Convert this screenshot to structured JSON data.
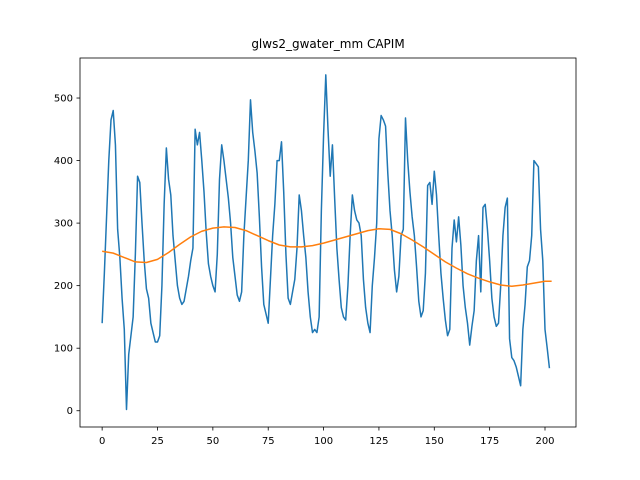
{
  "chart_data": {
    "type": "line",
    "title": "glws2_gwater_mm CAPIM",
    "xlim": [
      -10,
      214
    ],
    "xticks": [
      0,
      25,
      50,
      75,
      100,
      125,
      150,
      175,
      200
    ],
    "ylim": [
      -26,
      564
    ],
    "yticks": [
      0,
      100,
      200,
      300,
      400,
      500
    ],
    "grid": false,
    "series": [
      {
        "color": "#1f77b4",
        "x": [
          0,
          1,
          2,
          3,
          4,
          5,
          6,
          7,
          8,
          9,
          10,
          11,
          12,
          13,
          14,
          15,
          16,
          17,
          18,
          19,
          20,
          21,
          22,
          23,
          24,
          25,
          26,
          27,
          28,
          29,
          30,
          31,
          32,
          33,
          34,
          35,
          36,
          37,
          38,
          39,
          40,
          41,
          42,
          43,
          44,
          45,
          46,
          47,
          48,
          49,
          50,
          51,
          52,
          53,
          54,
          55,
          56,
          57,
          58,
          59,
          60,
          61,
          62,
          63,
          64,
          65,
          66,
          67,
          68,
          69,
          70,
          71,
          72,
          73,
          74,
          75,
          76,
          77,
          78,
          79,
          80,
          81,
          82,
          83,
          84,
          85,
          86,
          87,
          88,
          89,
          90,
          91,
          92,
          93,
          94,
          95,
          96,
          97,
          98,
          99,
          100,
          101,
          102,
          103,
          104,
          105,
          106,
          107,
          108,
          109,
          110,
          111,
          112,
          113,
          114,
          115,
          116,
          117,
          118,
          119,
          120,
          121,
          122,
          123,
          124,
          125,
          126,
          127,
          128,
          129,
          130,
          131,
          132,
          133,
          134,
          135,
          136,
          137,
          138,
          139,
          140,
          141,
          142,
          143,
          144,
          145,
          146,
          147,
          148,
          149,
          150,
          151,
          152,
          153,
          154,
          155,
          156,
          157,
          158,
          159,
          160,
          161,
          162,
          163,
          164,
          165,
          166,
          167,
          168,
          169,
          170,
          171,
          172,
          173,
          174,
          175,
          176,
          177,
          178,
          179,
          180,
          181,
          182,
          183,
          184,
          185,
          186,
          187,
          188,
          189,
          190,
          191,
          192,
          193,
          194,
          195,
          196,
          197,
          198,
          199,
          200,
          201,
          202
        ],
        "values": [
          140,
          220,
          310,
          400,
          465,
          480,
          425,
          290,
          245,
          180,
          130,
          2,
          90,
          120,
          150,
          250,
          375,
          365,
          300,
          240,
          195,
          180,
          140,
          125,
          110,
          110,
          120,
          200,
          330,
          420,
          370,
          345,
          280,
          240,
          200,
          180,
          170,
          175,
          195,
          215,
          240,
          260,
          450,
          425,
          445,
          400,
          350,
          285,
          235,
          215,
          200,
          190,
          250,
          370,
          425,
          400,
          370,
          340,
          300,
          245,
          215,
          185,
          175,
          190,
          280,
          340,
          400,
          497,
          445,
          415,
          380,
          310,
          230,
          170,
          155,
          140,
          210,
          280,
          330,
          400,
          400,
          430,
          350,
          250,
          180,
          170,
          190,
          210,
          260,
          345,
          320,
          280,
          245,
          190,
          150,
          125,
          130,
          125,
          150,
          320,
          440,
          537,
          450,
          375,
          425,
          340,
          260,
          210,
          165,
          150,
          145,
          200,
          280,
          345,
          320,
          305,
          300,
          280,
          210,
          165,
          140,
          125,
          200,
          245,
          300,
          435,
          472,
          465,
          455,
          380,
          320,
          280,
          225,
          190,
          215,
          280,
          290,
          468,
          400,
          350,
          310,
          280,
          230,
          175,
          150,
          160,
          220,
          360,
          365,
          330,
          383,
          345,
          280,
          220,
          180,
          145,
          120,
          130,
          260,
          305,
          270,
          310,
          265,
          200,
          165,
          140,
          105,
          135,
          160,
          240,
          280,
          190,
          325,
          330,
          290,
          240,
          180,
          150,
          135,
          140,
          200,
          280,
          325,
          340,
          115,
          85,
          80,
          70,
          55,
          40,
          130,
          170,
          230,
          240,
          280,
          400,
          395,
          390,
          290,
          240,
          130,
          100,
          68
        ]
      },
      {
        "color": "#ff7f0e",
        "x": [
          0,
          5,
          10,
          15,
          20,
          25,
          30,
          35,
          40,
          45,
          50,
          55,
          60,
          65,
          70,
          75,
          80,
          85,
          90,
          95,
          100,
          105,
          110,
          115,
          120,
          125,
          130,
          135,
          140,
          145,
          150,
          155,
          160,
          165,
          170,
          175,
          180,
          185,
          190,
          195,
          200,
          203
        ],
        "values": [
          255,
          252,
          245,
          238,
          237,
          242,
          253,
          266,
          278,
          287,
          292,
          294,
          293,
          288,
          280,
          272,
          265,
          262,
          262,
          264,
          268,
          273,
          278,
          283,
          288,
          291,
          290,
          283,
          273,
          262,
          250,
          238,
          228,
          219,
          212,
          206,
          201,
          199,
          201,
          204,
          207,
          207
        ]
      }
    ]
  }
}
